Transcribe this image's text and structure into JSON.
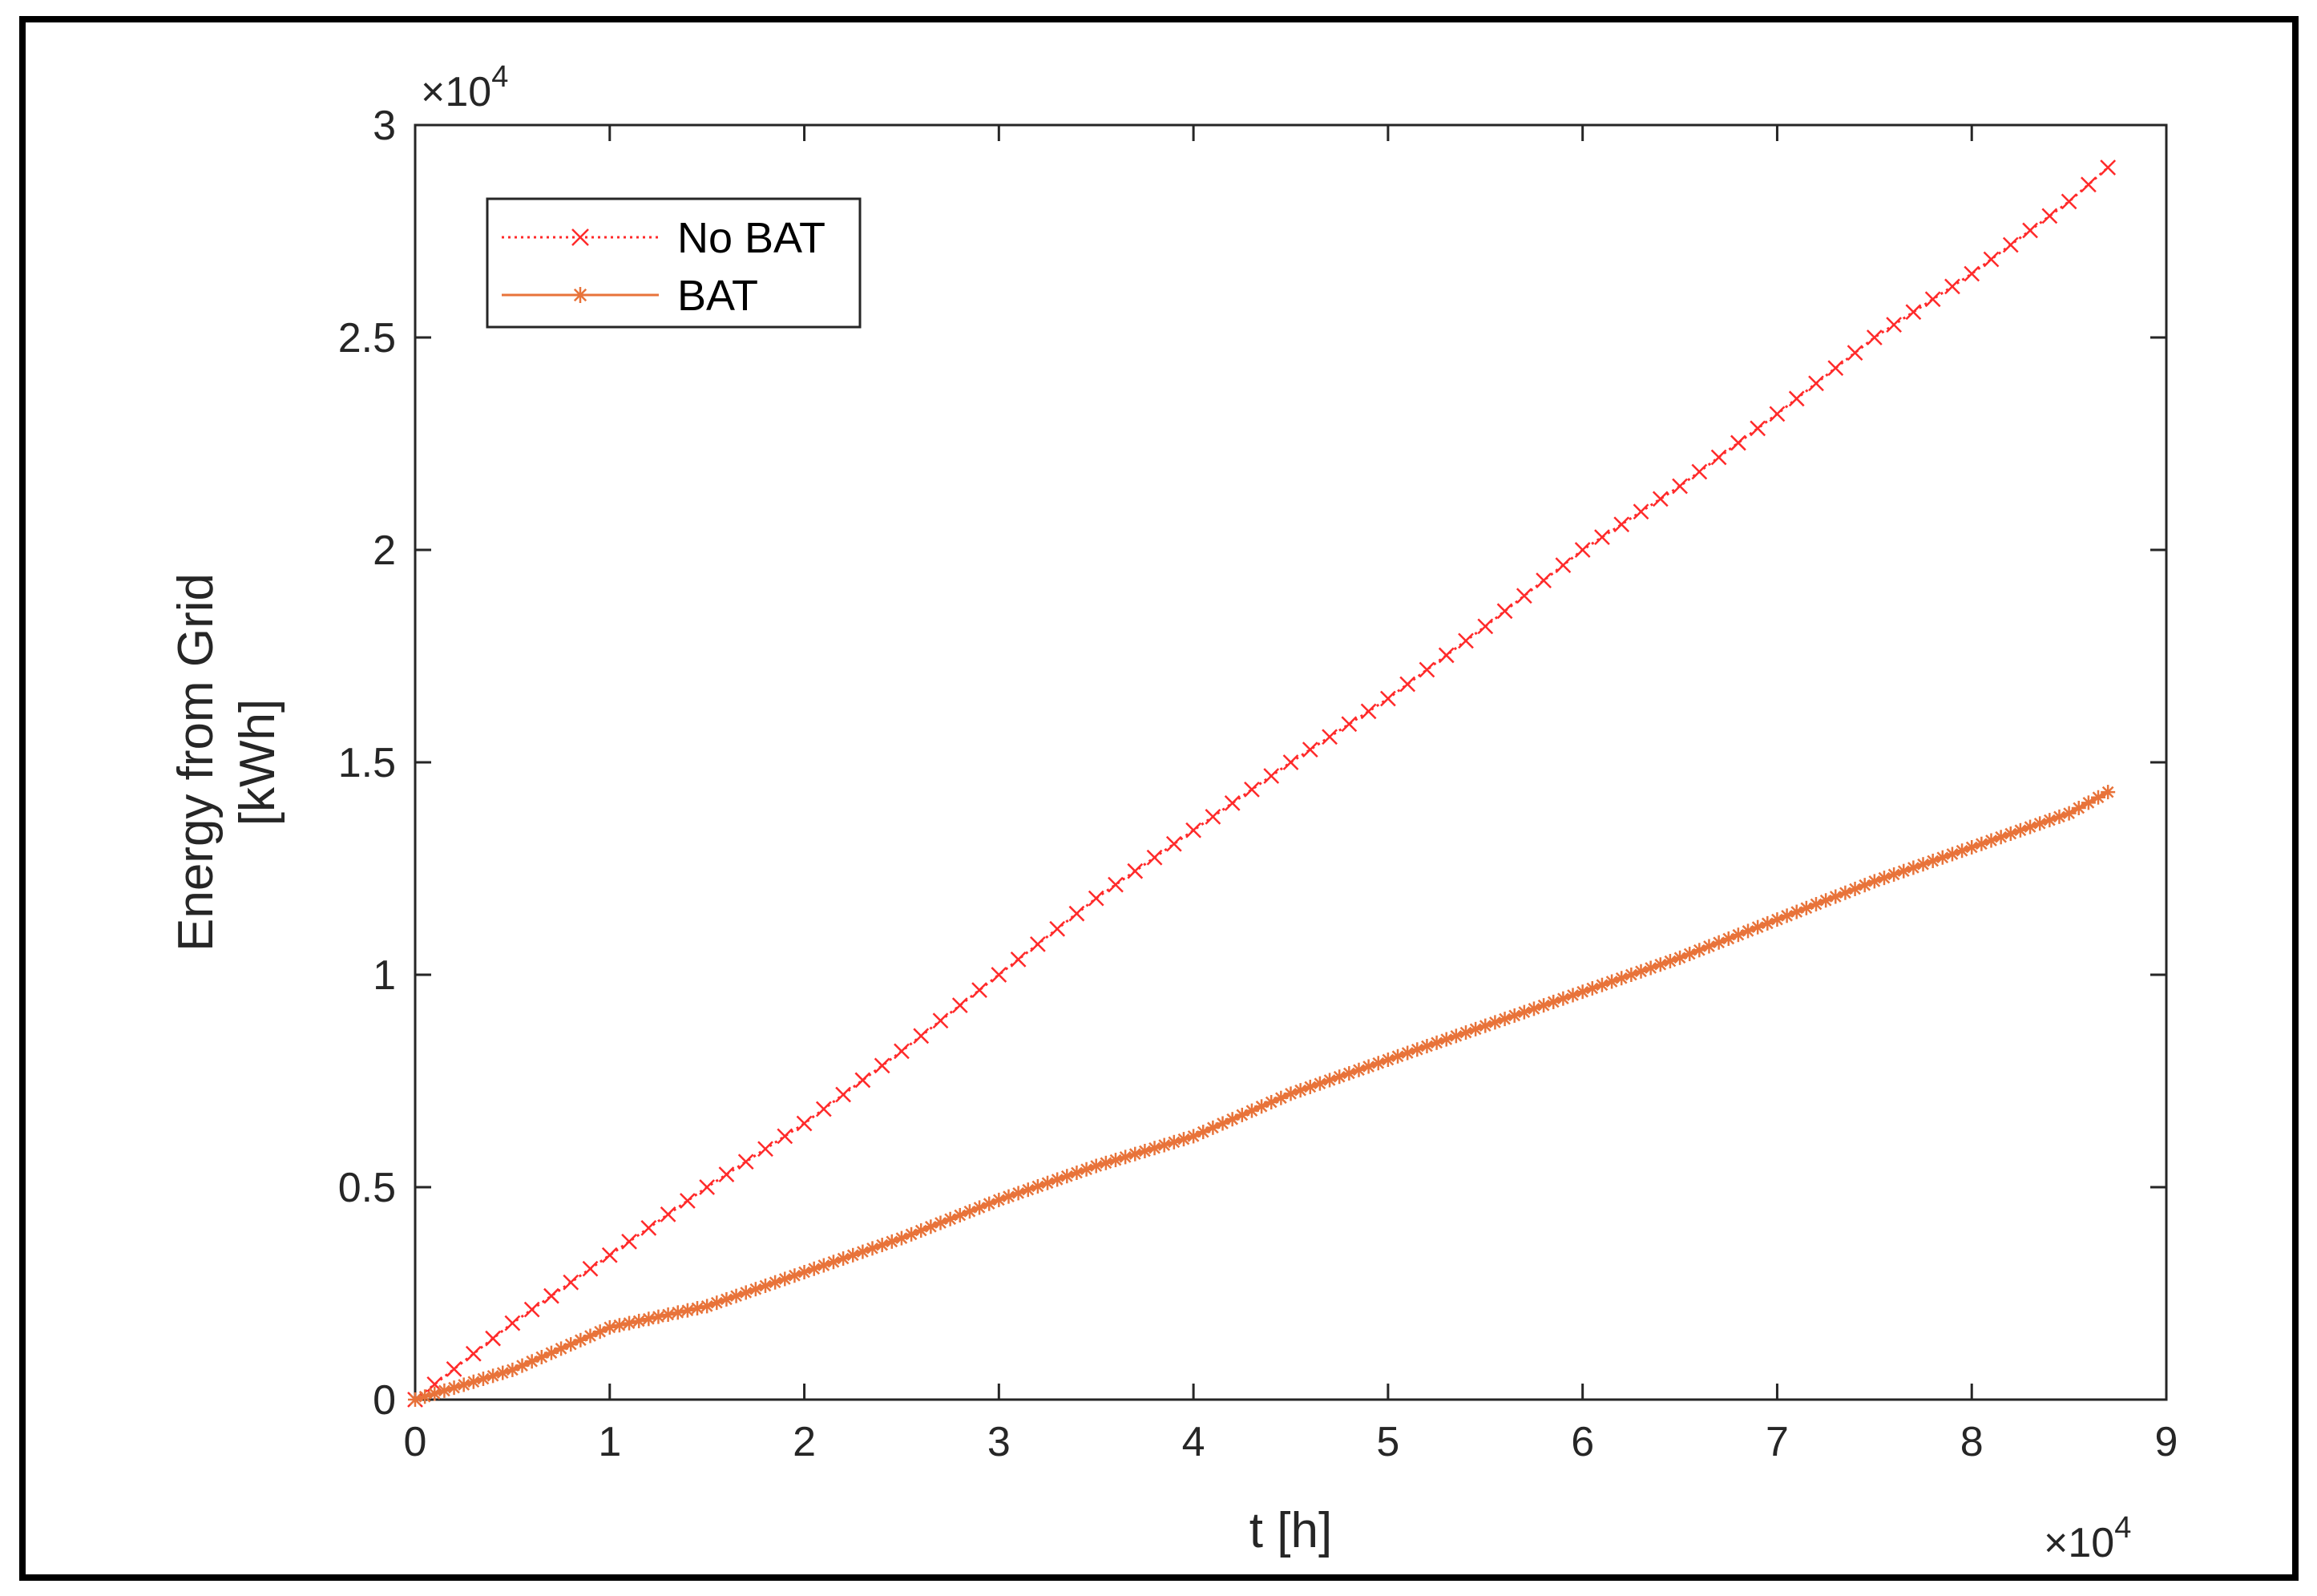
{
  "colors": {
    "no_bat": "#ff2a2a",
    "bat": "#e8733a",
    "axes": "#262626",
    "frame": "#000000"
  },
  "chart_data": {
    "type": "line",
    "title": "",
    "xlabel": "t [h]",
    "ylabel_line1": "Energy from Grid",
    "ylabel_line2": "[kWh]",
    "x_exponent_label": "×10",
    "x_exponent_power": "4",
    "y_exponent_label": "×10",
    "y_exponent_power": "4",
    "xlim": [
      0,
      90000
    ],
    "ylim": [
      0,
      30000
    ],
    "xticks": [
      0,
      10000,
      20000,
      30000,
      40000,
      50000,
      60000,
      70000,
      80000,
      90000
    ],
    "xtick_labels": [
      "0",
      "1",
      "2",
      "3",
      "4",
      "5",
      "6",
      "7",
      "8",
      "9"
    ],
    "yticks": [
      0,
      5000,
      10000,
      15000,
      20000,
      25000,
      30000
    ],
    "ytick_labels": [
      "0",
      "0.5",
      "1",
      "1.5",
      "2",
      "2.5",
      "3"
    ],
    "grid": false,
    "legend_position": "top-left",
    "series": [
      {
        "name": "No BAT",
        "line_style": "dotted",
        "marker": "x",
        "x": [
          0,
          5000,
          10000,
          15000,
          20000,
          25000,
          30000,
          35000,
          40000,
          45000,
          50000,
          55000,
          60000,
          65000,
          70000,
          75000,
          80000,
          85000,
          87000
        ],
        "y": [
          0,
          1800,
          3400,
          5000,
          6500,
          8200,
          10000,
          11800,
          13400,
          15000,
          16500,
          18200,
          20000,
          21500,
          23200,
          25000,
          26500,
          28200,
          29000
        ]
      },
      {
        "name": "BAT",
        "line_style": "solid",
        "marker": "*",
        "x": [
          0,
          5000,
          10000,
          15000,
          20000,
          25000,
          30000,
          35000,
          40000,
          45000,
          50000,
          55000,
          60000,
          65000,
          70000,
          75000,
          80000,
          85000,
          87000
        ],
        "y": [
          0,
          700,
          1700,
          2200,
          3000,
          3800,
          4700,
          5500,
          6200,
          7200,
          8000,
          8800,
          9600,
          10400,
          11300,
          12200,
          13000,
          13800,
          14300
        ]
      }
    ]
  }
}
